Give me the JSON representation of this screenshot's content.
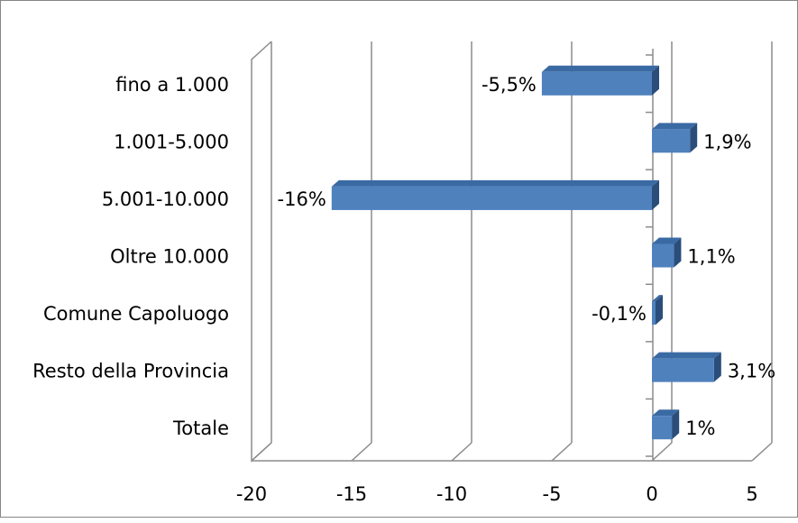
{
  "chart_data": {
    "type": "bar",
    "orientation": "horizontal",
    "style": "3d",
    "title": "",
    "xlabel": "",
    "ylabel": "",
    "categories": [
      "fino a 1.000",
      "1.001-5.000",
      "5.001-10.000",
      "Oltre 10.000",
      "Comune Capoluogo",
      "Resto della Provincia",
      "Totale"
    ],
    "values": [
      -5.5,
      1.9,
      -16,
      1.1,
      -0.1,
      3.1,
      1
    ],
    "data_labels": [
      "-5,5%",
      "1,9%",
      "-16%",
      "1,1%",
      "-0,1%",
      "3,1%",
      "1%"
    ],
    "xlim": [
      -20,
      5
    ],
    "xticks": [
      -20,
      -15,
      -10,
      -5,
      0,
      5
    ],
    "xtick_labels": [
      "-20",
      "-15",
      "-10",
      "-5",
      "0",
      "5"
    ],
    "grid": true,
    "legend": "none",
    "colors": {
      "bar_front": "#4f81bd",
      "bar_top": "#3a6aa4",
      "bar_side": "#2a4d7a",
      "grid": "#8c8c8c",
      "frame": "#868686"
    }
  }
}
